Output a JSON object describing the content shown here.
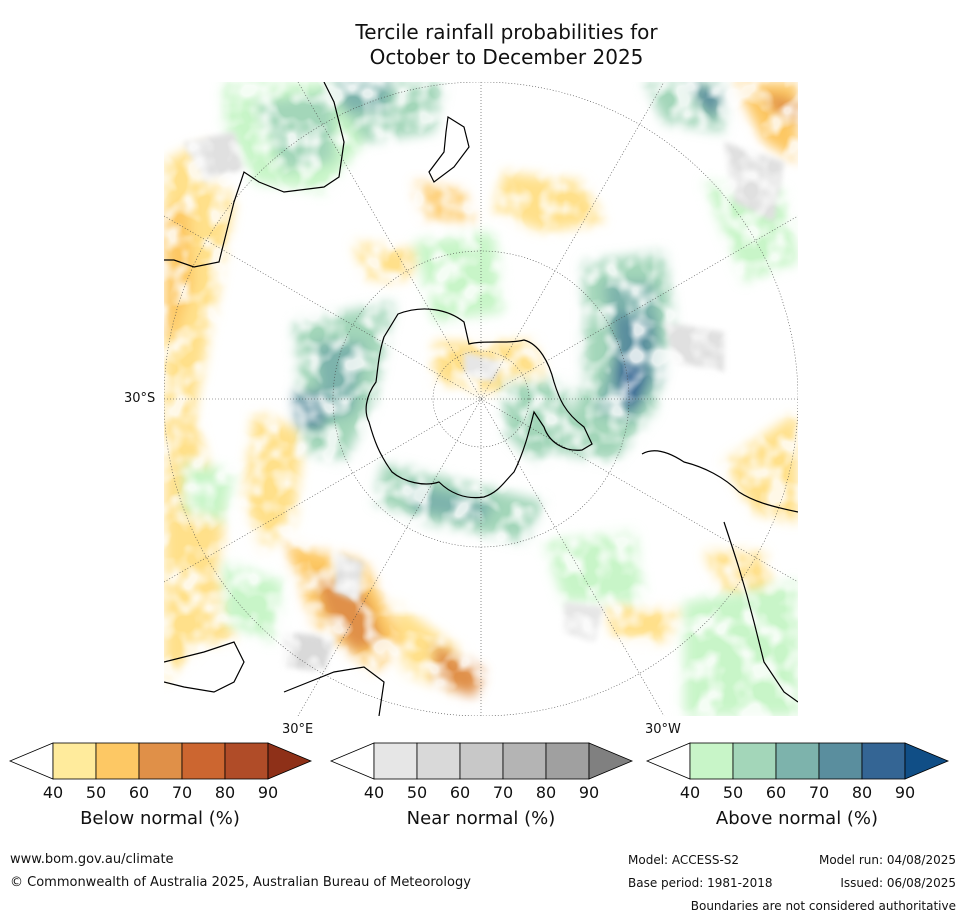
{
  "title_line1": "Tercile rainfall probabilities for",
  "title_line2": "October to December 2025",
  "map": {
    "lat_label": "30°S",
    "lon_label_east": "30°E",
    "lon_label_west": "30°W"
  },
  "colorbars": [
    {
      "label": "Below normal (%)",
      "ticks": [
        "40",
        "50",
        "60",
        "70",
        "80",
        "90"
      ],
      "colors": [
        "#ffeb9c",
        "#fdc864",
        "#e09048",
        "#cc6630",
        "#b04c28",
        "#8e3018"
      ]
    },
    {
      "label": "Near normal (%)",
      "ticks": [
        "40",
        "50",
        "60",
        "70",
        "80",
        "90"
      ],
      "colors": [
        "#e6e6e6",
        "#d9d9d9",
        "#c8c8c8",
        "#b4b4b4",
        "#a0a0a0",
        "#808080"
      ]
    },
    {
      "label": "Above normal (%)",
      "ticks": [
        "40",
        "50",
        "60",
        "70",
        "80",
        "90"
      ],
      "colors": [
        "#c8f5c8",
        "#a3d6b9",
        "#7db3ac",
        "#5a8e9e",
        "#346594",
        "#104e86"
      ]
    }
  ],
  "footer": {
    "website": "www.bom.gov.au/climate",
    "copyright": "© Commonwealth of Australia 2025, Australian Bureau of Meteorology",
    "model": "Model: ACCESS-S2",
    "base_period": "Base period: 1981-2018",
    "model_run": "Model run: 04/08/2025",
    "issued": "Issued: 06/08/2025",
    "boundaries": "Boundaries are not considered authoritative"
  }
}
